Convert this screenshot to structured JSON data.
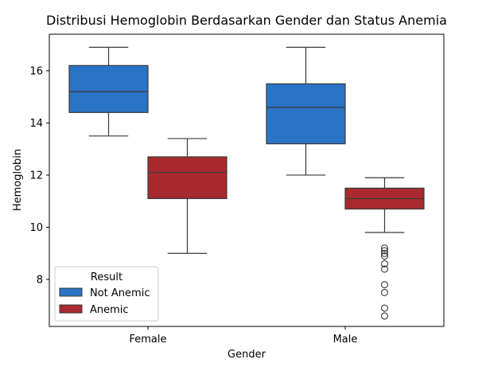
{
  "chart_data": {
    "type": "boxplot",
    "title": "Distribusi Hemoglobin Berdasarkan Gender dan Status Anemia",
    "xlabel": "Gender",
    "ylabel": "Hemoglobin",
    "categories": [
      "Female",
      "Male"
    ],
    "ylim": [
      6.2,
      17.4
    ],
    "yticks": [
      8,
      10,
      12,
      14,
      16
    ],
    "legend": {
      "title": "Result",
      "position": "bottom-left"
    },
    "series": [
      {
        "name": "Not Anemic",
        "color": "#2a74c7",
        "boxes": [
          {
            "category": "Female",
            "whisker_low": 13.5,
            "q1": 14.4,
            "median": 15.2,
            "q3": 16.2,
            "whisker_high": 16.9,
            "outliers": []
          },
          {
            "category": "Male",
            "whisker_low": 12.0,
            "q1": 13.2,
            "median": 14.6,
            "q3": 15.5,
            "whisker_high": 16.9,
            "outliers": []
          }
        ]
      },
      {
        "name": "Anemic",
        "color": "#a82a2e",
        "boxes": [
          {
            "category": "Female",
            "whisker_low": 9.0,
            "q1": 11.1,
            "median": 12.1,
            "q3": 12.7,
            "whisker_high": 13.4,
            "outliers": []
          },
          {
            "category": "Male",
            "whisker_low": 9.8,
            "q1": 10.7,
            "median": 11.1,
            "q3": 11.5,
            "whisker_high": 11.9,
            "outliers": [
              9.2,
              9.1,
              9.0,
              8.9,
              8.6,
              8.4,
              7.8,
              7.5,
              6.9,
              6.6
            ]
          }
        ]
      }
    ]
  }
}
